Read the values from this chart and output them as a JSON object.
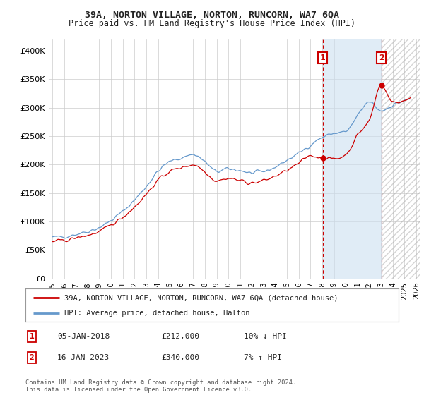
{
  "title": "39A, NORTON VILLAGE, NORTON, RUNCORN, WA7 6QA",
  "subtitle": "Price paid vs. HM Land Registry's House Price Index (HPI)",
  "ylabel_ticks": [
    "£0",
    "£50K",
    "£100K",
    "£150K",
    "£200K",
    "£250K",
    "£300K",
    "£350K",
    "£400K"
  ],
  "ytick_values": [
    0,
    50000,
    100000,
    150000,
    200000,
    250000,
    300000,
    350000,
    400000
  ],
  "ylim": [
    0,
    420000
  ],
  "xlim_start": 1994.7,
  "xlim_end": 2026.3,
  "hpi_color": "#6699cc",
  "price_color": "#cc0000",
  "shade_start": 2018.04,
  "shade_end": 2023.04,
  "marker1_date": 2018.04,
  "marker1_price": 212000,
  "marker1_label": "1",
  "marker2_date": 2023.04,
  "marker2_price": 340000,
  "marker2_label": "2",
  "legend_line1": "39A, NORTON VILLAGE, NORTON, RUNCORN, WA7 6QA (detached house)",
  "legend_line2": "HPI: Average price, detached house, Halton",
  "table_row1_num": "1",
  "table_row1_date": "05-JAN-2018",
  "table_row1_price": "£212,000",
  "table_row1_hpi": "10% ↓ HPI",
  "table_row2_num": "2",
  "table_row2_date": "16-JAN-2023",
  "table_row2_price": "£340,000",
  "table_row2_hpi": "7% ↑ HPI",
  "footer": "Contains HM Land Registry data © Crown copyright and database right 2024.\nThis data is licensed under the Open Government Licence v3.0.",
  "background_color": "#ffffff",
  "grid_color": "#cccccc"
}
